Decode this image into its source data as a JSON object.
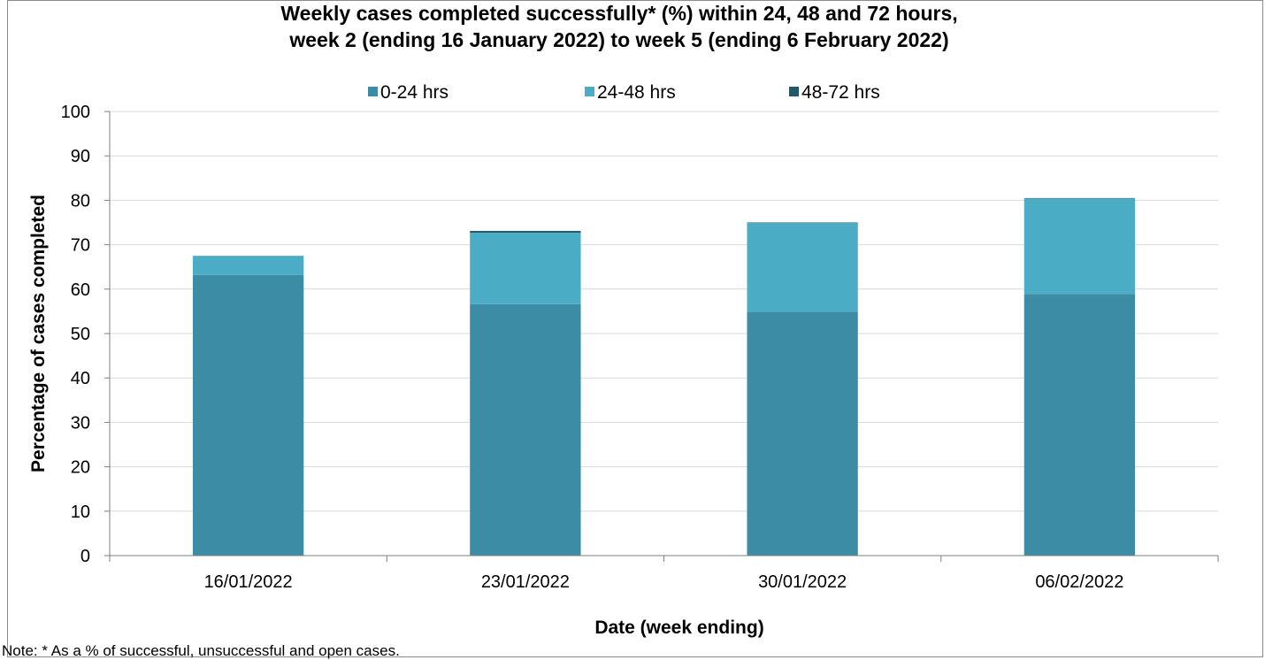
{
  "chart_data": {
    "type": "bar",
    "stacked": true,
    "title_line1": "Weekly cases completed successfully* (%) within 24, 48 and 72 hours,",
    "title_line2": "week 2 (ending 16 January 2022) to week 5 (ending 6 February 2022)",
    "xlabel": "Date (week ending)",
    "ylabel": "Percentage of cases completed",
    "categories": [
      "16/01/2022",
      "23/01/2022",
      "30/01/2022",
      "06/02/2022"
    ],
    "series": [
      {
        "name": "0-24 hrs",
        "color": "#3c8ca5",
        "values": [
          63.2,
          56.6,
          54.9,
          58.9
        ]
      },
      {
        "name": "24-48 hrs",
        "color": "#4bacc6",
        "values": [
          4.3,
          16.1,
          20.0,
          21.5
        ]
      },
      {
        "name": "48-72 hrs",
        "color": "#215968",
        "values": [
          0.0,
          0.4,
          0.1,
          0.1
        ]
      }
    ],
    "ylim": [
      0,
      100
    ],
    "yticks": [
      0,
      10,
      20,
      30,
      40,
      50,
      60,
      70,
      80,
      90,
      100
    ],
    "grid": true,
    "legend_position": "top"
  },
  "note": "Note: * As a % of successful, unsuccessful and open cases."
}
